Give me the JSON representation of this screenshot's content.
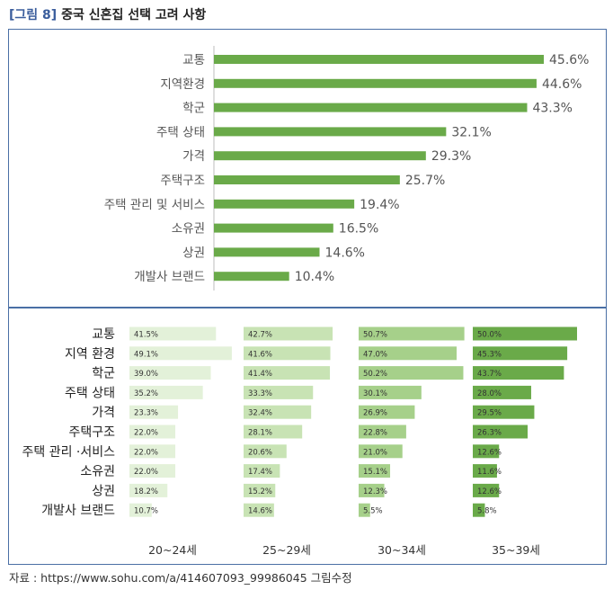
{
  "figure": {
    "tag": "[그림 8]",
    "title": "중국 신혼집 선택 고려 사항",
    "source": "자료 : https://www.sohu.com/a/414607093_99986045 그림수정"
  },
  "colors": {
    "bar_main": "#6aaa49",
    "age_shades": [
      "#e3f1d9",
      "#c8e3b4",
      "#a6d08a",
      "#6aaa49"
    ],
    "frame": "#4a6fa5"
  },
  "chart_data": [
    {
      "type": "bar",
      "orientation": "horizontal",
      "categories": [
        "교통",
        "지역환경",
        "학군",
        "주택 상태",
        "가격",
        "주택구조",
        "주택 관리 및 서비스",
        "소유권",
        "상권",
        "개발사 브랜드"
      ],
      "values": [
        45.6,
        44.6,
        43.3,
        32.1,
        29.3,
        25.7,
        19.4,
        16.5,
        14.6,
        10.4
      ],
      "value_labels": [
        "45.6%",
        "44.6%",
        "43.3%",
        "32.1%",
        "29.3%",
        "25.7%",
        "19.4%",
        "16.5%",
        "14.6%",
        "10.4%"
      ],
      "unit": "%",
      "xlim": [
        0,
        50
      ],
      "grid": false
    },
    {
      "type": "bar",
      "orientation": "horizontal",
      "layout": "small-multiples by age group",
      "categories": [
        "교통",
        "지역 환경",
        "학군",
        "주택 상태",
        "가격",
        "주택구조",
        "주택 관리 ·서비스",
        "소유권",
        "상권",
        "개발사 브랜드"
      ],
      "series": [
        {
          "name": "20~24세",
          "values": [
            41.5,
            49.1,
            39.0,
            35.2,
            23.3,
            22.0,
            22.0,
            22.0,
            18.2,
            10.7
          ],
          "labels": [
            "41.5%",
            "49.1%",
            "39.0%",
            "35.2%",
            "23.3%",
            "22.0%",
            "22.0%",
            "22.0%",
            "18.2%",
            "10.7%"
          ]
        },
        {
          "name": "25~29세",
          "values": [
            42.7,
            41.6,
            41.4,
            33.3,
            32.4,
            28.1,
            20.6,
            17.4,
            15.2,
            14.6
          ],
          "labels": [
            "42.7%",
            "41.6%",
            "41.4%",
            "33.3%",
            "32.4%",
            "28.1%",
            "20.6%",
            "17.4%",
            "15.2%",
            "14.6%"
          ]
        },
        {
          "name": "30~34세",
          "values": [
            50.7,
            47.0,
            50.2,
            30.1,
            26.9,
            22.8,
            21.0,
            15.1,
            12.3,
            5.5
          ],
          "labels": [
            "50.7%",
            "47.0%",
            "50.2%",
            "30.1%",
            "26.9%",
            "22.8%",
            "21.0%",
            "15.1%",
            "12.3%",
            "5.5%"
          ]
        },
        {
          "name": "35~39세",
          "values": [
            50.0,
            45.3,
            43.7,
            28.0,
            29.5,
            26.3,
            12.6,
            11.6,
            12.6,
            5.8
          ],
          "labels": [
            "50.0%",
            "45.3%",
            "43.7%",
            "28.0%",
            "29.5%",
            "26.3%",
            "12.6%",
            "11.6%",
            "12.6%",
            "5.8%"
          ]
        }
      ],
      "unit": "%",
      "grid": false
    }
  ]
}
